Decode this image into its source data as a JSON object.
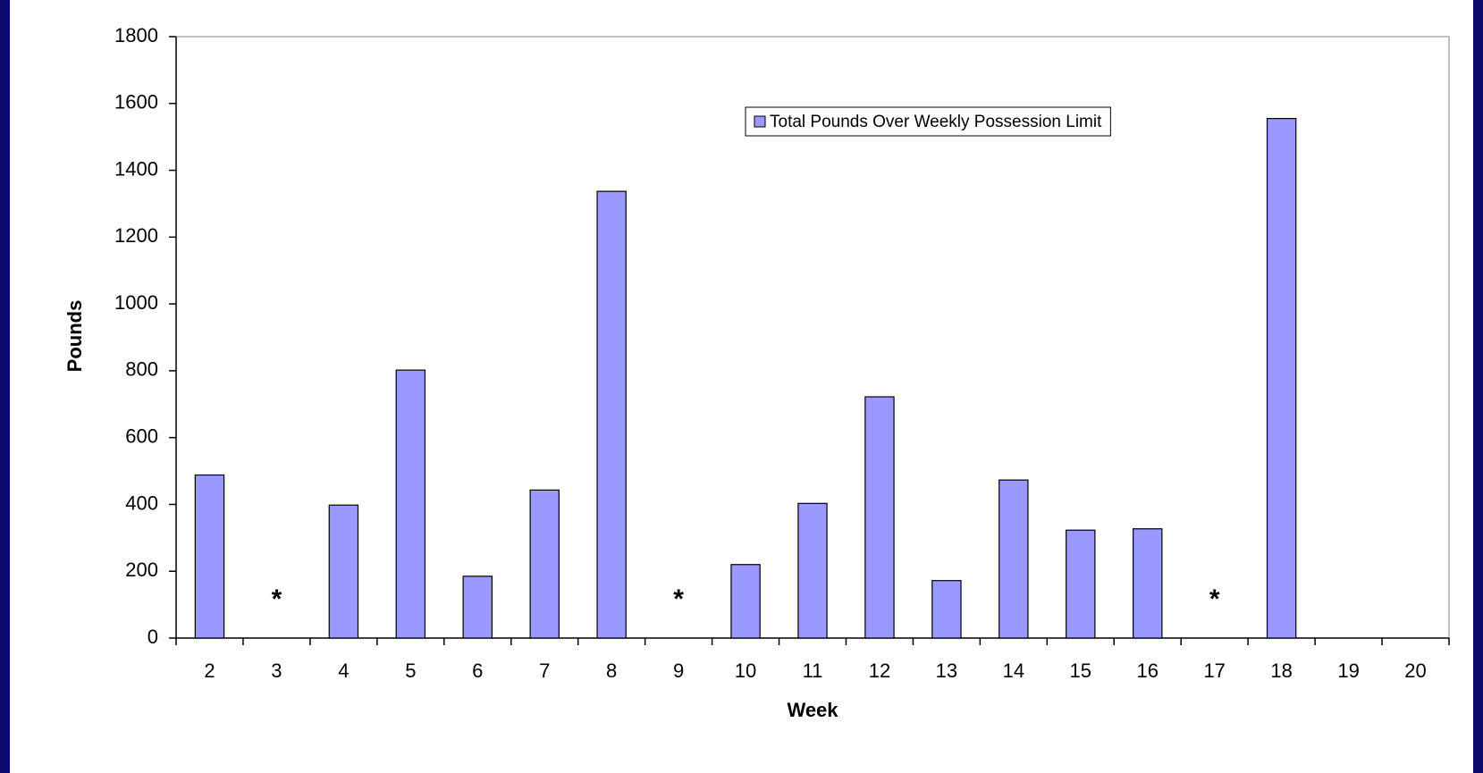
{
  "chart_data": {
    "type": "bar",
    "x_label": "Week",
    "y_label": "Pounds",
    "categories": [
      2,
      3,
      4,
      5,
      6,
      7,
      8,
      9,
      10,
      11,
      12,
      13,
      14,
      15,
      16,
      17,
      18,
      19,
      20
    ],
    "series": [
      {
        "name": "Total Pounds Over Weekly Possession Limit",
        "color": "#9999ff",
        "values": [
          488,
          null,
          398,
          802,
          185,
          443,
          1337,
          null,
          220,
          403,
          722,
          172,
          473,
          323,
          327,
          null,
          1555,
          null,
          null
        ]
      }
    ],
    "annotations": [
      {
        "text": "*",
        "category": 3
      },
      {
        "text": "*",
        "category": 9
      },
      {
        "text": "*",
        "category": 17
      }
    ],
    "ylim": [
      0,
      1800
    ],
    "yticks": [
      0,
      200,
      400,
      600,
      800,
      1000,
      1200,
      1400,
      1600,
      1800
    ],
    "legend": "upper right",
    "grid": false
  }
}
